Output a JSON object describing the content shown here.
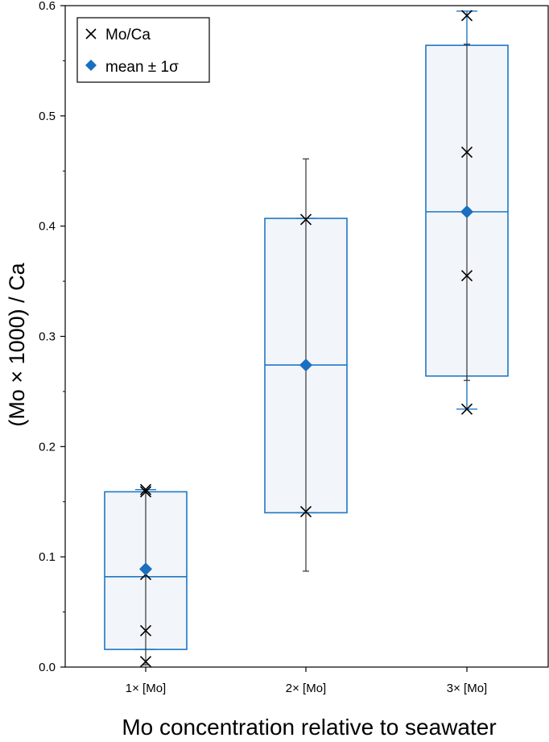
{
  "chart_data": {
    "type": "box",
    "xlabel": "Mo concentration relative to seawater",
    "ylabel": "(Mo × 1000) / Ca",
    "ylim": [
      0,
      0.6
    ],
    "yticks": [
      "0.0",
      "0.1",
      "0.2",
      "0.3",
      "0.4",
      "0.5",
      "0.6"
    ],
    "categories": [
      "1× [Mo]",
      "2× [Mo]",
      "3× [Mo]"
    ],
    "groups": [
      {
        "category": "1× [Mo]",
        "points": [
          0.161,
          0.159,
          0.084,
          0.033,
          0.005
        ],
        "mean": 0.089,
        "median": 0.082,
        "box": [
          0.016,
          0.159
        ],
        "sd_bar": [
          0.002,
          0.161
        ],
        "whiskers": [
          0.016,
          0.161
        ]
      },
      {
        "category": "2× [Mo]",
        "points": [
          0.406,
          0.141
        ],
        "mean": 0.274,
        "median": 0.274,
        "box": [
          0.14,
          0.407
        ],
        "sd_bar": [
          0.087,
          0.461
        ],
        "whiskers": [
          0.14,
          0.407
        ]
      },
      {
        "category": "3× [Mo]",
        "points": [
          0.591,
          0.467,
          0.355,
          0.234
        ],
        "mean": 0.413,
        "median": 0.413,
        "box": [
          0.264,
          0.564
        ],
        "sd_bar": [
          0.26,
          0.565
        ],
        "whiskers": [
          0.234,
          0.595
        ]
      }
    ],
    "legend": {
      "position": "top-left",
      "entries": [
        {
          "label": "Mo/Ca",
          "marker": "x"
        },
        {
          "label": "mean ± 1σ",
          "marker": "diamond"
        }
      ]
    },
    "grid": false,
    "colors": {
      "box_edge": "#1f77c4",
      "box_fill": "#f2f6fa",
      "mean_marker": "#1a6fc0",
      "points": "#000000",
      "sd_bar": "#333333"
    }
  }
}
